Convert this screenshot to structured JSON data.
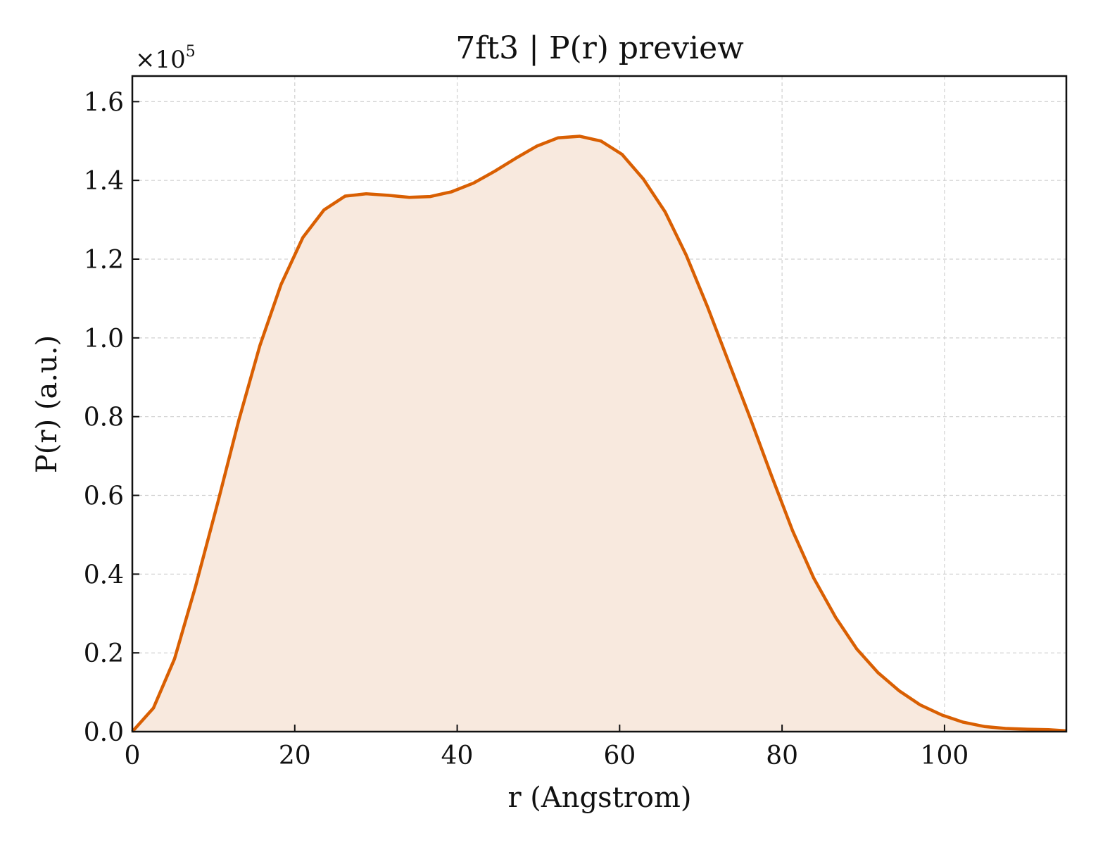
{
  "chart_data": {
    "type": "area",
    "title": "7ft3 | P(r) preview",
    "xlabel": "r (Angstrom)",
    "ylabel": "P(r) (a.u.)",
    "y_multiplier_base": "×10",
    "y_multiplier_exp": "5",
    "xlim": [
      0,
      115
    ],
    "ylim": [
      0,
      1.665
    ],
    "x_ticks": [
      0,
      20,
      40,
      60,
      80,
      100
    ],
    "x_tick_labels": [
      "0",
      "20",
      "40",
      "60",
      "80",
      "100"
    ],
    "y_ticks": [
      0.0,
      0.2,
      0.4,
      0.6,
      0.8,
      1.0,
      1.2,
      1.4,
      1.6
    ],
    "y_tick_labels": [
      "0.0",
      "0.2",
      "0.4",
      "0.6",
      "0.8",
      "1.0",
      "1.2",
      "1.4",
      "1.6"
    ],
    "grid": true,
    "line_color": "#d95f02",
    "fill_color": "#f8e9de",
    "series": [
      {
        "x": [
          0,
          2.6,
          5.2,
          7.8,
          10.5,
          13.1,
          15.7,
          18.3,
          21.0,
          23.6,
          26.2,
          28.8,
          31.5,
          34.1,
          36.7,
          39.3,
          42.0,
          44.6,
          47.2,
          49.8,
          52.4,
          55.1,
          57.7,
          60.3,
          62.9,
          65.6,
          68.2,
          70.8,
          73.4,
          76.1,
          78.7,
          81.3,
          83.9,
          86.6,
          89.2,
          91.8,
          94.4,
          97.0,
          99.7,
          102.3,
          104.9,
          107.5,
          110.2,
          112.8,
          115.0
        ],
        "y": [
          0.0,
          0.06,
          0.185,
          0.37,
          0.58,
          0.79,
          0.98,
          1.135,
          1.255,
          1.325,
          1.36,
          1.366,
          1.362,
          1.357,
          1.359,
          1.371,
          1.393,
          1.423,
          1.456,
          1.487,
          1.508,
          1.512,
          1.5,
          1.466,
          1.404,
          1.32,
          1.21,
          1.08,
          0.94,
          0.795,
          0.65,
          0.51,
          0.39,
          0.29,
          0.21,
          0.15,
          0.104,
          0.068,
          0.042,
          0.024,
          0.013,
          0.008,
          0.006,
          0.005,
          0.002
        ]
      }
    ]
  }
}
